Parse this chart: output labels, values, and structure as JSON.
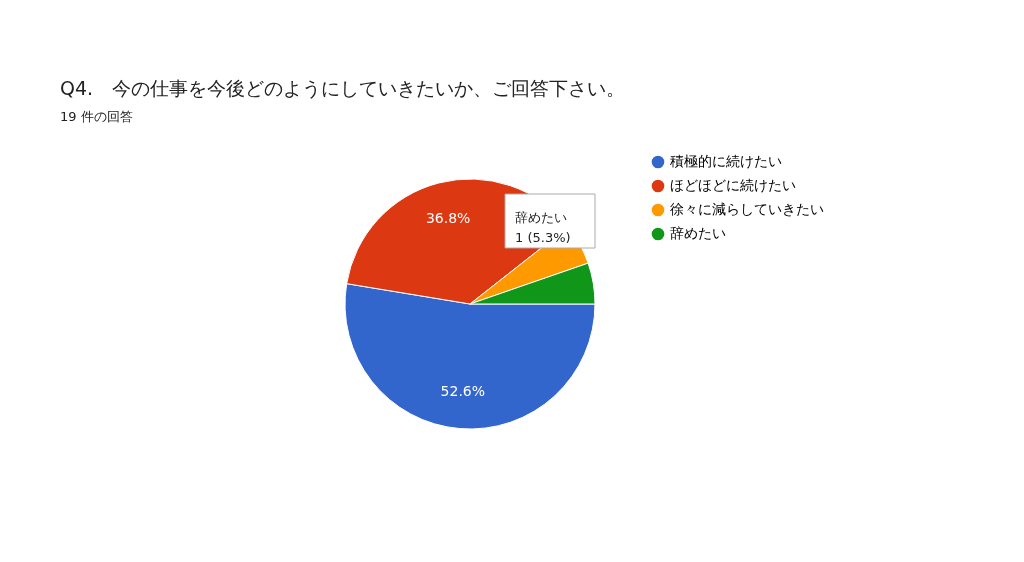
{
  "chart_data": {
    "type": "pie",
    "title": "Q4.　今の仕事を今後どのようにしていきたいか、ご回答下さい。",
    "subtitle": "19 件の回答",
    "categories": [
      "積極的に続けたい",
      "ほどほどに続けたい",
      "徐々に減らしていきたい",
      "辞めたい"
    ],
    "values": [
      52.6,
      36.8,
      5.3,
      5.3
    ],
    "colors": [
      "#3366cc",
      "#dc3912",
      "#ff9900",
      "#109618"
    ],
    "value_labels": [
      "52.6%",
      "36.8%",
      null,
      null
    ],
    "annotations": [
      "辞めたい",
      "1 (5.3%)"
    ],
    "legend": "right"
  }
}
